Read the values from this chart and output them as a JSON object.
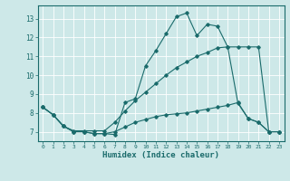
{
  "xlabel": "Humidex (Indice chaleur)",
  "bg_color": "#cde8e8",
  "line_color": "#1a6b6b",
  "grid_color": "#ffffff",
  "xlim": [
    -0.5,
    23.5
  ],
  "ylim": [
    6.5,
    13.7
  ],
  "yticks": [
    7,
    8,
    9,
    10,
    11,
    12,
    13
  ],
  "xticks": [
    0,
    1,
    2,
    3,
    4,
    5,
    6,
    7,
    8,
    9,
    10,
    11,
    12,
    13,
    14,
    15,
    16,
    17,
    18,
    19,
    20,
    21,
    22,
    23
  ],
  "line1_x": [
    0,
    1,
    2,
    3,
    4,
    5,
    6,
    7,
    8,
    9,
    10,
    11,
    12,
    13,
    14,
    15,
    16,
    17,
    18,
    19,
    20,
    21,
    22,
    23
  ],
  "line1_y": [
    8.3,
    7.9,
    7.3,
    7.0,
    7.0,
    6.9,
    6.9,
    6.85,
    8.55,
    8.75,
    10.5,
    11.3,
    12.2,
    13.1,
    13.3,
    12.1,
    12.7,
    12.6,
    11.5,
    8.5,
    7.7,
    7.5,
    7.0,
    7.0
  ],
  "line2_x": [
    0,
    1,
    2,
    3,
    4,
    5,
    6,
    7,
    8,
    9,
    10,
    11,
    12,
    13,
    14,
    15,
    16,
    17,
    18,
    19,
    20,
    21,
    22,
    23
  ],
  "line2_y": [
    8.3,
    7.9,
    7.3,
    7.05,
    7.05,
    7.05,
    7.05,
    7.5,
    8.1,
    8.65,
    9.1,
    9.55,
    10.0,
    10.4,
    10.7,
    11.0,
    11.2,
    11.45,
    11.5,
    11.5,
    11.5,
    11.5,
    7.0,
    7.0
  ],
  "line3_x": [
    0,
    1,
    2,
    3,
    4,
    5,
    6,
    7,
    8,
    9,
    10,
    11,
    12,
    13,
    14,
    15,
    16,
    17,
    18,
    19,
    20,
    21,
    22,
    23
  ],
  "line3_y": [
    8.3,
    7.9,
    7.3,
    7.0,
    7.0,
    6.9,
    6.9,
    7.0,
    7.25,
    7.5,
    7.65,
    7.8,
    7.9,
    7.95,
    8.0,
    8.1,
    8.2,
    8.3,
    8.4,
    8.55,
    7.7,
    7.5,
    7.0,
    7.0
  ]
}
